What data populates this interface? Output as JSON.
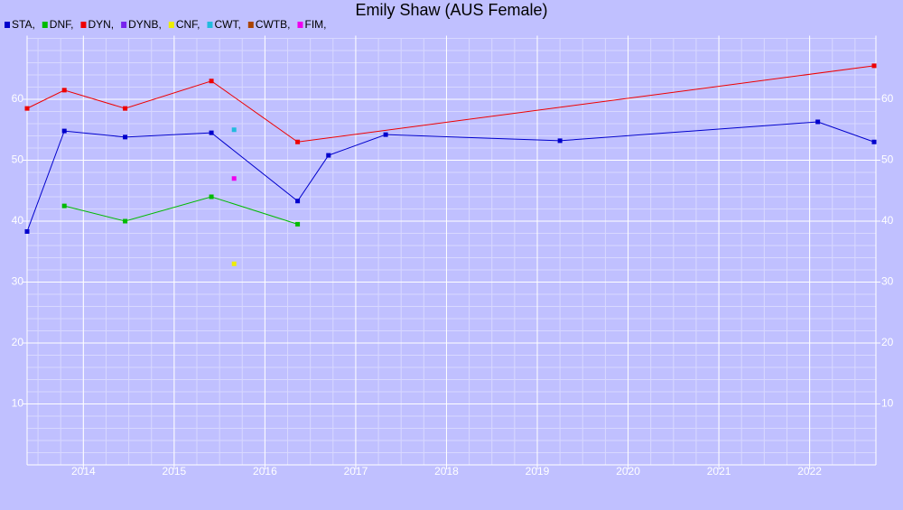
{
  "chart_data": {
    "type": "line",
    "title": "Emily Shaw (AUS Female)",
    "xlim": [
      2013.38,
      2022.73
    ],
    "xticks": [
      2014,
      2015,
      2016,
      2017,
      2018,
      2019,
      2020,
      2021,
      2022
    ],
    "ylim": [
      0,
      70
    ],
    "yticks": [
      10,
      20,
      30,
      40,
      50,
      60
    ],
    "grid": true,
    "legend": "top-left",
    "background": "#c0c0ff",
    "series": [
      {
        "name": "STA,",
        "color": "#0000cc",
        "x": [
          2013.38,
          2013.79,
          2014.46,
          2015.41,
          2016.36,
          2016.7,
          2017.33,
          2019.25,
          2022.09,
          2022.71
        ],
        "values": [
          38.3,
          54.8,
          53.8,
          54.5,
          43.3,
          50.8,
          54.2,
          53.2,
          56.3,
          53.0
        ]
      },
      {
        "name": "DNF,",
        "color": "#00bb00",
        "x": [
          2013.79,
          2014.46,
          2015.41,
          2016.36
        ],
        "values": [
          42.5,
          40.0,
          44.0,
          39.5
        ]
      },
      {
        "name": "DYN,",
        "color": "#ee0000",
        "x": [
          2013.38,
          2013.79,
          2014.46,
          2015.41,
          2016.36,
          2022.71
        ],
        "values": [
          58.5,
          61.5,
          58.5,
          63.0,
          53.0,
          65.5
        ]
      },
      {
        "name": "DYNB,",
        "color": "#7722ee",
        "x": [],
        "values": []
      },
      {
        "name": "CNF,",
        "color": "#eeee00",
        "x": [
          2015.66
        ],
        "values": [
          33.0
        ]
      },
      {
        "name": "CWT,",
        "color": "#22bbdd",
        "x": [
          2015.66
        ],
        "values": [
          55.0
        ]
      },
      {
        "name": "CWTB,",
        "color": "#aa4400",
        "x": [],
        "values": []
      },
      {
        "name": "FIM,",
        "color": "#ee00ee",
        "x": [
          2015.66
        ],
        "values": [
          47.0
        ]
      }
    ]
  }
}
